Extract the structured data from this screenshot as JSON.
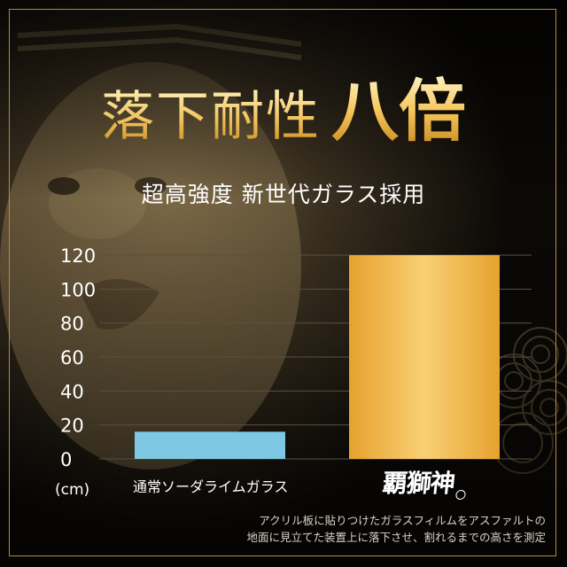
{
  "heading": {
    "main": "落下耐性",
    "accent": "八倍",
    "subtitle": "超高強度 新世代ガラス採用"
  },
  "unit_label": "(cm)",
  "brand_logo_text": "覇獅神",
  "footnote_lines": [
    "アクリル板に貼りつけたガラスフィルムをアスファルトの",
    "地面に見立てた装置上に落下させ、割れるまでの高さを測定"
  ],
  "colors": {
    "background": "#0b0906",
    "frame": "#b8893a",
    "bar_standard": "#7ec8e3",
    "bar_brand_light": "#f9cf74",
    "bar_brand_dark": "#e6a22e",
    "grid": "#5a5040"
  },
  "chart_data": {
    "type": "bar",
    "categories": [
      "通常ソーダライムガラス",
      "覇獅神"
    ],
    "values": [
      16,
      120
    ],
    "ylim": [
      0,
      120
    ],
    "yticks": [
      "0",
      "20",
      "40",
      "60",
      "80",
      "100",
      "120"
    ],
    "ylabel": "(cm)",
    "grid": true
  }
}
